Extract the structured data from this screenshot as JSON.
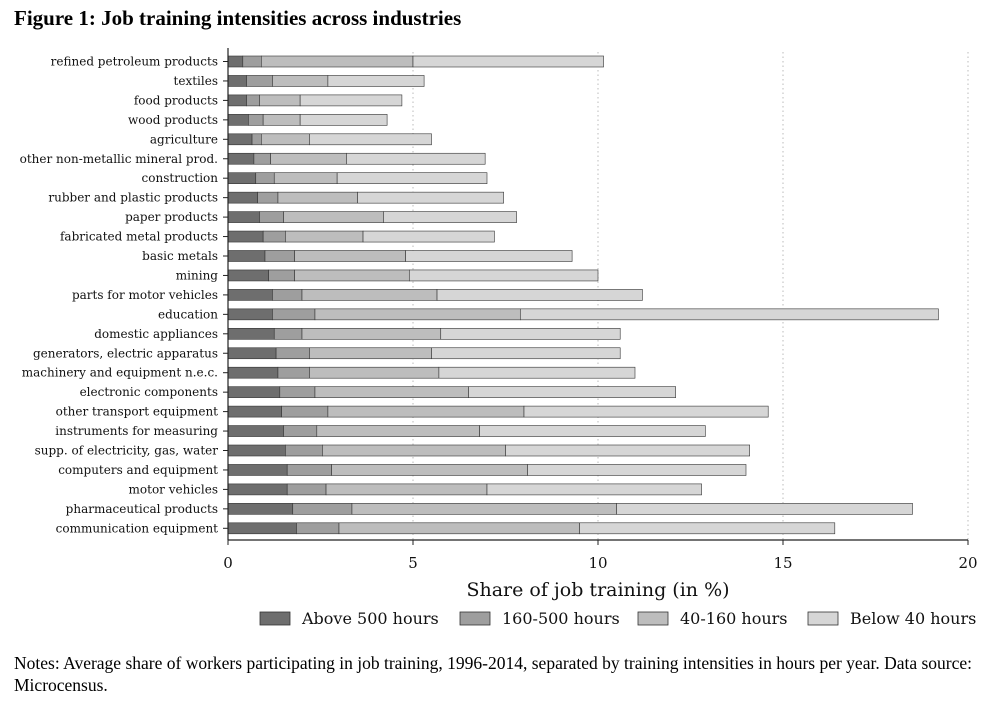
{
  "figure_title": "Figure 1: Job training intensities across industries",
  "notes": "Notes: Average share of workers participating in job training, 1996-2014, separated by training intensities in hours per year. Data source: Microcensus.",
  "colors": {
    "above_500": "#6e6e6e",
    "h160_500": "#9e9e9e",
    "h40_160": "#bdbdbd",
    "below_40": "#d6d6d6",
    "stroke": "#333333",
    "grid": "#bbbbbb"
  },
  "chart_data": {
    "type": "bar",
    "orientation": "horizontal",
    "stacked": true,
    "xlabel": "Share of job training (in %)",
    "ylabel": "",
    "xlim": [
      0,
      20
    ],
    "xticks": [
      0,
      5,
      10,
      15,
      20
    ],
    "grid": "vertical dotted",
    "legend_position": "bottom",
    "categories": [
      "refined petroleum products",
      "textiles",
      "food products",
      "wood products",
      "agriculture",
      "other non-metallic mineral prod.",
      "construction",
      "rubber and plastic products",
      "paper products",
      "fabricated metal products",
      "basic metals",
      "mining",
      "parts for motor vehicles",
      "education",
      "domestic appliances",
      "generators, electric apparatus",
      "machinery and equipment n.e.c.",
      "electronic components",
      "other transport equipment",
      "instruments for measuring",
      "supp. of electricity, gas, water",
      "computers and equipment",
      "motor vehicles",
      "pharmaceutical products",
      "communication equipment"
    ],
    "series": [
      {
        "name": "Above 500 hours",
        "values": [
          0.4,
          0.5,
          0.5,
          0.55,
          0.65,
          0.7,
          0.75,
          0.8,
          0.85,
          0.95,
          1.0,
          1.1,
          1.2,
          1.2,
          1.25,
          1.3,
          1.35,
          1.4,
          1.45,
          1.5,
          1.55,
          1.6,
          1.6,
          1.75,
          1.85
        ]
      },
      {
        "name": "160-500 hours",
        "values": [
          0.5,
          0.7,
          0.35,
          0.4,
          0.25,
          0.45,
          0.5,
          0.55,
          0.65,
          0.6,
          0.8,
          0.7,
          0.8,
          1.15,
          0.75,
          0.9,
          0.85,
          0.95,
          1.25,
          0.9,
          1.0,
          1.2,
          1.05,
          1.6,
          1.15
        ]
      },
      {
        "name": "40-160 hours",
        "values": [
          4.1,
          1.5,
          1.1,
          1.0,
          1.3,
          2.05,
          1.7,
          2.15,
          2.7,
          2.1,
          3.0,
          3.1,
          3.65,
          5.55,
          3.75,
          3.3,
          3.5,
          4.15,
          5.3,
          4.4,
          4.95,
          5.3,
          4.35,
          7.15,
          6.5
        ]
      },
      {
        "name": "Below 40 hours",
        "values": [
          5.15,
          2.6,
          2.75,
          2.35,
          3.3,
          3.75,
          4.05,
          3.95,
          3.6,
          3.55,
          4.5,
          5.1,
          5.55,
          11.3,
          4.85,
          5.1,
          5.3,
          5.6,
          6.6,
          6.1,
          6.6,
          5.9,
          5.8,
          8.0,
          6.9
        ]
      }
    ]
  }
}
